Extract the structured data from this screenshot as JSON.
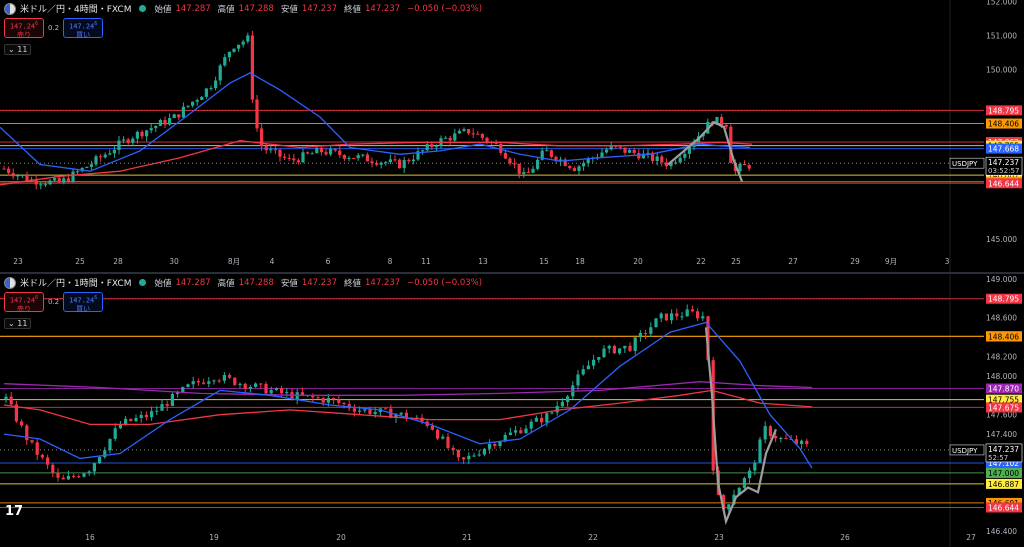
{
  "panes": [
    {
      "id": "pane-4h",
      "symbol": "米ドル／円・4時間・FXCM",
      "ohlc": {
        "open_label": "始値",
        "open": "147.287",
        "high_label": "高値",
        "high": "147.288",
        "low_label": "安値",
        "low": "147.237",
        "close_label": "終値",
        "close": "147.237",
        "change": "−0.050 (−0.03%)"
      },
      "sell": {
        "price": "147.24",
        "sup": "6",
        "label": "売り"
      },
      "buy": {
        "price": "147.24",
        "sup": "6",
        "label": "買い"
      },
      "spread": "0.2",
      "collapse": "⌄ 11",
      "price_axis": {
        "min": 144.5,
        "max": 152.05,
        "ticks": [
          {
            "v": 152.0,
            "t": "152.000"
          },
          {
            "v": 151.0,
            "t": "151.000"
          },
          {
            "v": 150.0,
            "t": "150.000"
          },
          {
            "v": 145.0,
            "t": "145.000"
          }
        ]
      },
      "time_axis": [
        "23",
        "25",
        "28",
        "30",
        "8月",
        "4",
        "6",
        "8",
        "11",
        "13",
        "15",
        "18",
        "20",
        "22",
        "25",
        "27",
        "29",
        "9月",
        "3"
      ],
      "levels": [
        {
          "v": 148.795,
          "t": "148.795",
          "color": "#f23645"
        },
        {
          "v": 148.406,
          "t": "148.406",
          "color": "#ff9800"
        },
        {
          "v": 147.862,
          "t": "147.862",
          "color": "#f23645"
        },
        {
          "v": 147.755,
          "t": "147.755",
          "color": "#ffeb3b"
        },
        {
          "v": 147.668,
          "t": "147.668",
          "color": "#2962ff"
        },
        {
          "v": 146.887,
          "t": "146.887",
          "color": "#ffeb3b"
        },
        {
          "v": 146.691,
          "t": "146.691",
          "color": "#ff9800"
        },
        {
          "v": 146.644,
          "t": "146.644",
          "color": "#f23645"
        }
      ],
      "current": {
        "symbol": "USDJPY",
        "price": "147.237",
        "countdown": "03:52:57"
      }
    },
    {
      "id": "pane-1h",
      "symbol": "米ドル／円・1時間・FXCM",
      "ohlc": {
        "open_label": "始値",
        "open": "147.287",
        "high_label": "高値",
        "high": "147.288",
        "low_label": "安値",
        "low": "147.237",
        "close_label": "終値",
        "close": "147.237",
        "change": "−0.050 (−0.03%)"
      },
      "sell": {
        "price": "147.24",
        "sup": "6",
        "label": "売り"
      },
      "buy": {
        "price": "147.24",
        "sup": "6",
        "label": "買い"
      },
      "spread": "0.2",
      "collapse": "⌄ 11",
      "price_axis": {
        "min": 146.35,
        "max": 149.05,
        "ticks": [
          {
            "v": 149.0,
            "t": "149.000"
          },
          {
            "v": 148.6,
            "t": "148.600"
          },
          {
            "v": 148.2,
            "t": "148.200"
          },
          {
            "v": 148.0,
            "t": "148.000"
          },
          {
            "v": 147.6,
            "t": "147.600"
          },
          {
            "v": 147.4,
            "t": "147.400"
          },
          {
            "v": 146.4,
            "t": "146.400"
          }
        ]
      },
      "time_axis": [
        "16",
        "19",
        "20",
        "21",
        "22",
        "23",
        "26",
        "27"
      ],
      "levels": [
        {
          "v": 148.795,
          "t": "148.795",
          "color": "#f23645"
        },
        {
          "v": 148.41,
          "t": "148.410",
          "color": "#4caf50"
        },
        {
          "v": 148.406,
          "t": "148.406",
          "color": "#ff9800"
        },
        {
          "v": 147.87,
          "t": "147.870",
          "color": "#9c27b0"
        },
        {
          "v": 147.755,
          "t": "147.755",
          "color": "#ffeb3b"
        },
        {
          "v": 147.675,
          "t": "147.675",
          "color": "#f23645"
        },
        {
          "v": 147.102,
          "t": "147.102",
          "color": "#2962ff"
        },
        {
          "v": 147.0,
          "t": "147.000",
          "color": "#4caf50"
        },
        {
          "v": 146.887,
          "t": "146.887",
          "color": "#ffeb3b"
        },
        {
          "v": 146.691,
          "t": "146.691",
          "color": "#ff9800"
        },
        {
          "v": 146.644,
          "t": "146.644",
          "color": "#f23645"
        }
      ],
      "current": {
        "symbol": "USDJPY",
        "price": "147.237",
        "countdown": "52:57"
      }
    }
  ],
  "logo": "17",
  "colors": {
    "bull": "#22ab94",
    "bear": "#f23645",
    "ma_fast": "#2962ff",
    "ma_mid": "#f23645",
    "ma_slow": "#9c27b0",
    "projection": "#9e9e9e"
  }
}
